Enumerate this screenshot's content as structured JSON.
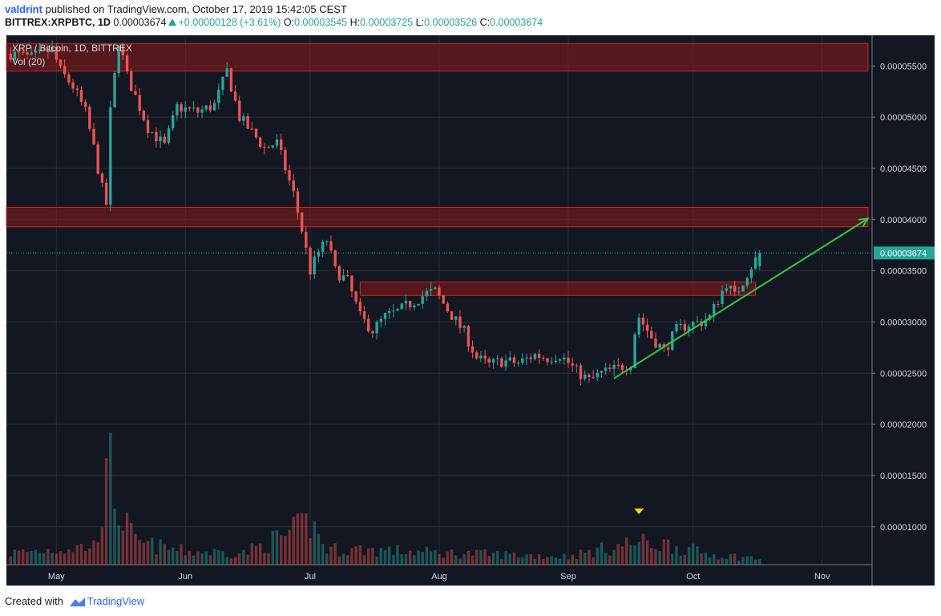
{
  "header": {
    "user": "valdrint",
    "published_text": "published on TradingView.com, October 17, 2019 15:42:05 CEST",
    "symbol_line": "BITTREX:XRPBTC, 1D",
    "last": "0.00003674",
    "change": "+0.00000128 (+3.61%)",
    "o_label": "O:",
    "o_value": "0.00003545",
    "h_label": "H:",
    "h_value": "0.00003725",
    "l_label": "L:",
    "l_value": "0.00003526",
    "c_label": "C:",
    "c_value": "0.00003674"
  },
  "footer": {
    "created_with": "Created with",
    "brand": "TradingView"
  },
  "chart_data": {
    "type": "candlestick",
    "title": "XRP / Bitcoin, 1D, BITTREX",
    "indicator": "Vol (20)",
    "colors": {
      "background": "#131722",
      "up": "#26a69a",
      "down": "#ef5350",
      "zone": "#8b1a1a",
      "trendline": "#2ecc40",
      "price_line": "#26a69a"
    },
    "ylim": [
      6.3e-06,
      5.8e-05
    ],
    "y_ticks": [
      {
        "value": 5.5e-05,
        "label": "0.00005500"
      },
      {
        "value": 5e-05,
        "label": "0.00005000"
      },
      {
        "value": 4.5e-05,
        "label": "0.00004500"
      },
      {
        "value": 4e-05,
        "label": "0.00004000"
      },
      {
        "value": 3.5e-05,
        "label": "0.00003500"
      },
      {
        "value": 3e-05,
        "label": "0.00003000"
      },
      {
        "value": 2.5e-05,
        "label": "0.00002500"
      },
      {
        "value": 2e-05,
        "label": "0.00002000"
      },
      {
        "value": 1.5e-05,
        "label": "0.00001500"
      },
      {
        "value": 1e-05,
        "label": "0.00001000"
      }
    ],
    "x_ticks": [
      {
        "date": "2019-05-01",
        "label": "May"
      },
      {
        "date": "2019-06-01",
        "label": "Jun"
      },
      {
        "date": "2019-07-01",
        "label": "Jul"
      },
      {
        "date": "2019-08-01",
        "label": "Aug"
      },
      {
        "date": "2019-09-01",
        "label": "Sep"
      },
      {
        "date": "2019-10-01",
        "label": "Oct"
      },
      {
        "date": "2019-11-01",
        "label": "Nov"
      }
    ],
    "x_range": [
      "2019-04-19",
      "2019-11-13"
    ],
    "last_price": {
      "value": 3.674e-05,
      "label": "0.00003674"
    },
    "zones": [
      {
        "from": "2019-04-19",
        "to": "2019-11-12",
        "low": 5.45e-05,
        "high": 5.72e-05
      },
      {
        "from": "2019-04-19",
        "to": "2019-11-12",
        "low": 3.93e-05,
        "high": 4.12e-05
      },
      {
        "from": "2019-07-13",
        "to": "2019-10-16",
        "low": 3.26e-05,
        "high": 3.39e-05
      }
    ],
    "trendline": {
      "from_date": "2019-09-12",
      "from_price": 2.45e-05,
      "to_date": "2019-11-12",
      "to_price": 4.01e-05
    },
    "marker": {
      "date": "2019-09-18",
      "shape": "down-triangle",
      "color": "#f5d800"
    },
    "ohlc_anchors": [
      [
        "2019-04-20",
        5.62e-05
      ],
      [
        "2019-04-25",
        5.58e-05
      ],
      [
        "2019-04-30",
        5.66e-05
      ],
      [
        "2019-05-02",
        5.45e-05
      ],
      [
        "2019-05-05",
        5.3e-05
      ],
      [
        "2019-05-08",
        5.05e-05
      ],
      [
        "2019-05-10",
        4.7e-05
      ],
      [
        "2019-05-12",
        4.3e-05
      ],
      [
        "2019-05-13",
        4.15e-05
      ],
      [
        "2019-05-14",
        5.05e-05
      ],
      [
        "2019-05-16",
        5.75e-05
      ],
      [
        "2019-05-18",
        5.4e-05
      ],
      [
        "2019-05-20",
        5.2e-05
      ],
      [
        "2019-05-23",
        4.9e-05
      ],
      [
        "2019-05-27",
        4.72e-05
      ],
      [
        "2019-05-30",
        5.1e-05
      ],
      [
        "2019-06-04",
        5.05e-05
      ],
      [
        "2019-06-08",
        5.12e-05
      ],
      [
        "2019-06-11",
        5.45e-05
      ],
      [
        "2019-06-14",
        5e-05
      ],
      [
        "2019-06-17",
        4.85e-05
      ],
      [
        "2019-06-20",
        4.7e-05
      ],
      [
        "2019-06-23",
        4.75e-05
      ],
      [
        "2019-06-25",
        4.5e-05
      ],
      [
        "2019-06-27",
        4.25e-05
      ],
      [
        "2019-06-29",
        3.9e-05
      ],
      [
        "2019-07-01",
        3.5e-05
      ],
      [
        "2019-07-03",
        3.68e-05
      ],
      [
        "2019-07-05",
        3.8e-05
      ],
      [
        "2019-07-07",
        3.5e-05
      ],
      [
        "2019-07-10",
        3.4e-05
      ],
      [
        "2019-07-13",
        3.05e-05
      ],
      [
        "2019-07-16",
        2.92e-05
      ],
      [
        "2019-07-19",
        3.05e-05
      ],
      [
        "2019-07-22",
        3.1e-05
      ],
      [
        "2019-07-25",
        3.18e-05
      ],
      [
        "2019-07-29",
        3.28e-05
      ],
      [
        "2019-07-31",
        3.3e-05
      ],
      [
        "2019-08-03",
        3.12e-05
      ],
      [
        "2019-08-07",
        2.9e-05
      ],
      [
        "2019-08-10",
        2.65e-05
      ],
      [
        "2019-08-13",
        2.58e-05
      ],
      [
        "2019-08-16",
        2.62e-05
      ],
      [
        "2019-08-20",
        2.6e-05
      ],
      [
        "2019-08-24",
        2.68e-05
      ],
      [
        "2019-08-27",
        2.65e-05
      ],
      [
        "2019-08-30",
        2.68e-05
      ],
      [
        "2019-09-03",
        2.52e-05
      ],
      [
        "2019-09-06",
        2.43e-05
      ],
      [
        "2019-09-09",
        2.5e-05
      ],
      [
        "2019-09-13",
        2.55e-05
      ],
      [
        "2019-09-16",
        2.6e-05
      ],
      [
        "2019-09-17",
        2.9e-05
      ],
      [
        "2019-09-18",
        3.05e-05
      ],
      [
        "2019-09-21",
        2.85e-05
      ],
      [
        "2019-09-24",
        2.72e-05
      ],
      [
        "2019-09-27",
        2.92e-05
      ],
      [
        "2019-09-30",
        2.98e-05
      ],
      [
        "2019-10-03",
        3e-05
      ],
      [
        "2019-10-05",
        3.05e-05
      ],
      [
        "2019-10-07",
        3.22e-05
      ],
      [
        "2019-10-09",
        3.38e-05
      ],
      [
        "2019-10-11",
        3.25e-05
      ],
      [
        "2019-10-13",
        3.4e-05
      ],
      [
        "2019-10-15",
        3.55e-05
      ],
      [
        "2019-10-17",
        3.67e-05
      ]
    ],
    "volume_anchors": [
      [
        "2019-04-20",
        8e-06
      ],
      [
        "2019-04-30",
        8.5e-06
      ],
      [
        "2019-05-10",
        9e-06
      ],
      [
        "2019-05-14",
        2e-05
      ],
      [
        "2019-05-16",
        1.4e-05
      ],
      [
        "2019-05-20",
        9.5e-06
      ],
      [
        "2019-06-01",
        8.2e-06
      ],
      [
        "2019-06-15",
        8e-06
      ],
      [
        "2019-06-27",
        1.1e-05
      ],
      [
        "2019-07-01",
        1.25e-05
      ],
      [
        "2019-07-05",
        8.5e-06
      ],
      [
        "2019-07-15",
        8.5e-06
      ],
      [
        "2019-08-01",
        8e-06
      ],
      [
        "2019-08-15",
        7.8e-06
      ],
      [
        "2019-09-01",
        7.5e-06
      ],
      [
        "2019-09-17",
        9.5e-06
      ],
      [
        "2019-09-25",
        9.2e-06
      ],
      [
        "2019-10-05",
        7.8e-06
      ],
      [
        "2019-10-17",
        7.2e-06
      ]
    ]
  }
}
